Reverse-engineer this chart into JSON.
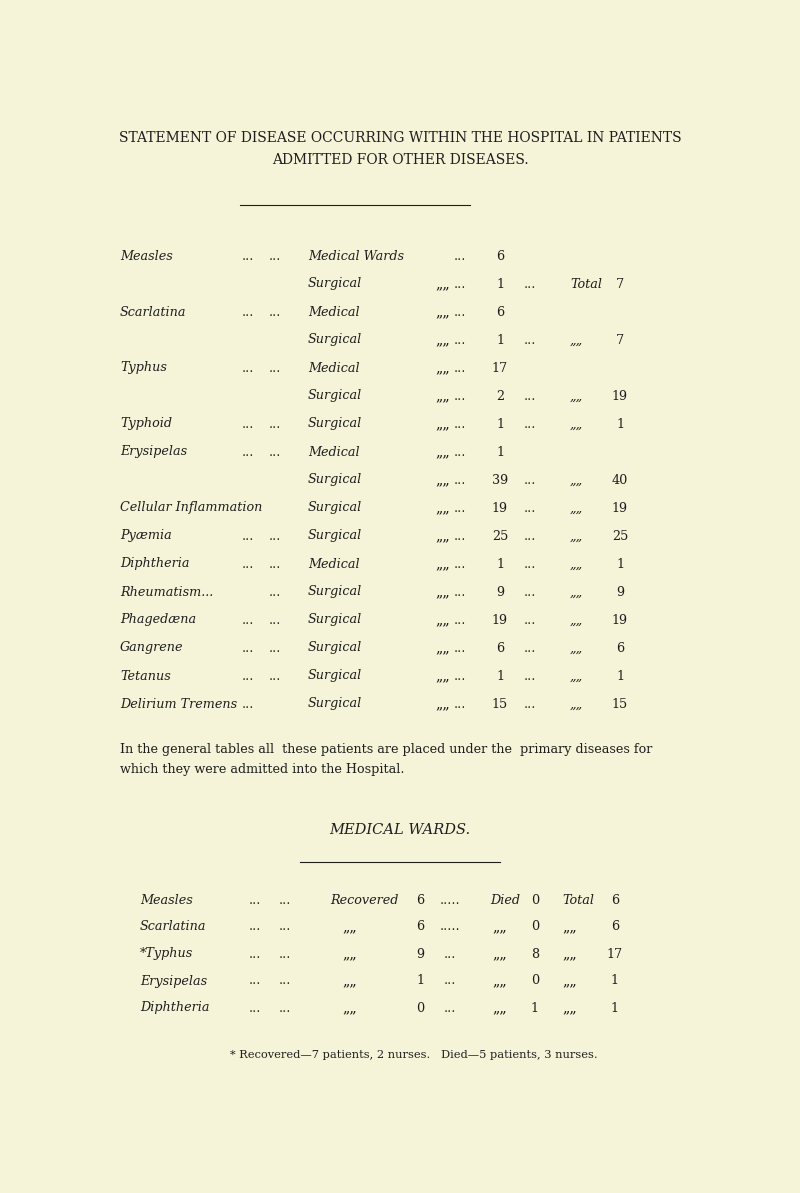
{
  "bg_color": "#f5f4d8",
  "title_line1": "STATEMENT OF DISEASE OCCURRING WITHIN THE HOSPITAL IN PATIENTS",
  "title_line2": "ADMITTED FOR OTHER DISEASES.",
  "title_fontsize": 10.0,
  "table1_rows": [
    {
      "disease": "Measles",
      "d1": "...",
      "d2": "...",
      "ward": "Medical Wards",
      "comma": "",
      "dots3": "...",
      "count": "6",
      "dots4": "",
      "label": "",
      "total": ""
    },
    {
      "disease": "",
      "d1": "",
      "d2": "",
      "ward": "Surgical",
      "comma": "„„",
      "dots3": "...",
      "count": "1",
      "dots4": "...",
      "label": "Total",
      "total": "7"
    },
    {
      "disease": "Scarlatina",
      "d1": "...",
      "d2": "...",
      "ward": "Medical",
      "comma": "„„",
      "dots3": "...",
      "count": "6",
      "dots4": "",
      "label": "",
      "total": ""
    },
    {
      "disease": "",
      "d1": "",
      "d2": "",
      "ward": "Surgical",
      "comma": "„„",
      "dots3": "...",
      "count": "1",
      "dots4": "...",
      "label": "„„",
      "total": "7"
    },
    {
      "disease": "Typhus",
      "d1": "...",
      "d2": "...",
      "ward": "Medical",
      "comma": "„„",
      "dots3": "...",
      "count": "17",
      "dots4": "",
      "label": "",
      "total": ""
    },
    {
      "disease": "",
      "d1": "",
      "d2": "",
      "ward": "Surgical",
      "comma": "„„",
      "dots3": "...",
      "count": "2",
      "dots4": "...",
      "label": "„„",
      "total": "19"
    },
    {
      "disease": "Typhoid",
      "d1": "...",
      "d2": "...",
      "ward": "Surgical",
      "comma": "„„",
      "dots3": "...",
      "count": "1",
      "dots4": "...",
      "label": "„„",
      "total": "1"
    },
    {
      "disease": "Erysipelas",
      "d1": "...",
      "d2": "...",
      "ward": "Medical",
      "comma": "„„",
      "dots3": "...",
      "count": "1",
      "dots4": "",
      "label": "",
      "total": ""
    },
    {
      "disease": "",
      "d1": "",
      "d2": "",
      "ward": "Surgical",
      "comma": "„„",
      "dots3": "...",
      "count": "39",
      "dots4": "...",
      "label": "„„",
      "total": "40"
    },
    {
      "disease": "Cellular Inflammation",
      "d1": "",
      "d2": "",
      "ward": "Surgical",
      "comma": "„„",
      "dots3": "...",
      "count": "19",
      "dots4": "...",
      "label": "„„",
      "total": "19"
    },
    {
      "disease": "Pyæmia",
      "d1": "...",
      "d2": "...",
      "ward": "Surgical",
      "comma": "„„",
      "dots3": "...",
      "count": "25",
      "dots4": "...",
      "label": "„„",
      "total": "25"
    },
    {
      "disease": "Diphtheria",
      "d1": "...",
      "d2": "...",
      "ward": "Medical",
      "comma": "„„",
      "dots3": "...",
      "count": "1",
      "dots4": "...",
      "label": "„„",
      "total": "1"
    },
    {
      "disease": "Rheumatism...",
      "d1": "",
      "d2": "...",
      "ward": "Surgical",
      "comma": "„„",
      "dots3": "...",
      "count": "9",
      "dots4": "...",
      "label": "„„",
      "total": "9"
    },
    {
      "disease": "Phagedæna",
      "d1": "...",
      "d2": "...",
      "ward": "Surgical",
      "comma": "„„",
      "dots3": "...",
      "count": "19",
      "dots4": "...",
      "label": "„„",
      "total": "19"
    },
    {
      "disease": "Gangrene",
      "d1": "...",
      "d2": "...",
      "ward": "Surgical",
      "comma": "„„",
      "dots3": "...",
      "count": "6",
      "dots4": "...",
      "label": "„„",
      "total": "6"
    },
    {
      "disease": "Tetanus",
      "d1": "...",
      "d2": "...",
      "ward": "Surgical",
      "comma": "„„",
      "dots3": "...",
      "count": "1",
      "dots4": "...",
      "label": "„„",
      "total": "1"
    },
    {
      "disease": "Delirium Tremens",
      "d1": "...",
      "d2": "",
      "ward": "Surgical",
      "comma": "„„",
      "dots3": "...",
      "count": "15",
      "dots4": "...",
      "label": "„„",
      "total": "15"
    }
  ],
  "note_text1": "In the general tables all  these patients are placed under the  primary diseases for",
  "note_text2": "which they were admitted into the Hospital.",
  "section2_title": "MEDICAL WARDS.",
  "table2_rows": [
    {
      "disease": "Measles",
      "d1": "...",
      "d2": "...",
      "rec_lbl": "Recovered",
      "rec": "6",
      "d3": ".....",
      "died_lbl": "Died",
      "died": "0",
      "tot_lbl": "Total",
      "total": "6",
      "star": false
    },
    {
      "disease": "Scarlatina",
      "d1": "...",
      "d2": "...",
      "rec_lbl": "„„",
      "rec": "6",
      "d3": ".....",
      "died_lbl": "„„",
      "died": "0",
      "tot_lbl": "„„",
      "total": "6",
      "star": false
    },
    {
      "disease": "Typhus",
      "d1": "...",
      "d2": "...",
      "rec_lbl": "„„",
      "rec": "9",
      "d3": "...",
      "died_lbl": "„„",
      "died": "8",
      "tot_lbl": "„„",
      "total": "17",
      "star": true
    },
    {
      "disease": "Erysipelas",
      "d1": "...",
      "d2": "...",
      "rec_lbl": "„„",
      "rec": "1",
      "d3": "...",
      "died_lbl": "„„",
      "died": "0",
      "tot_lbl": "„„",
      "total": "1",
      "star": false
    },
    {
      "disease": "Diphtheria",
      "d1": "...",
      "d2": "...",
      "rec_lbl": "„„",
      "rec": "0",
      "d3": "...",
      "died_lbl": "„„",
      "died": "1",
      "tot_lbl": "„„",
      "total": "1",
      "star": false
    }
  ],
  "footnote": "* Recovered—7 patients, 2 nurses.   Died—5 patients, 3 nurses.",
  "text_color": "#1e1e1e",
  "font_family": "serif"
}
